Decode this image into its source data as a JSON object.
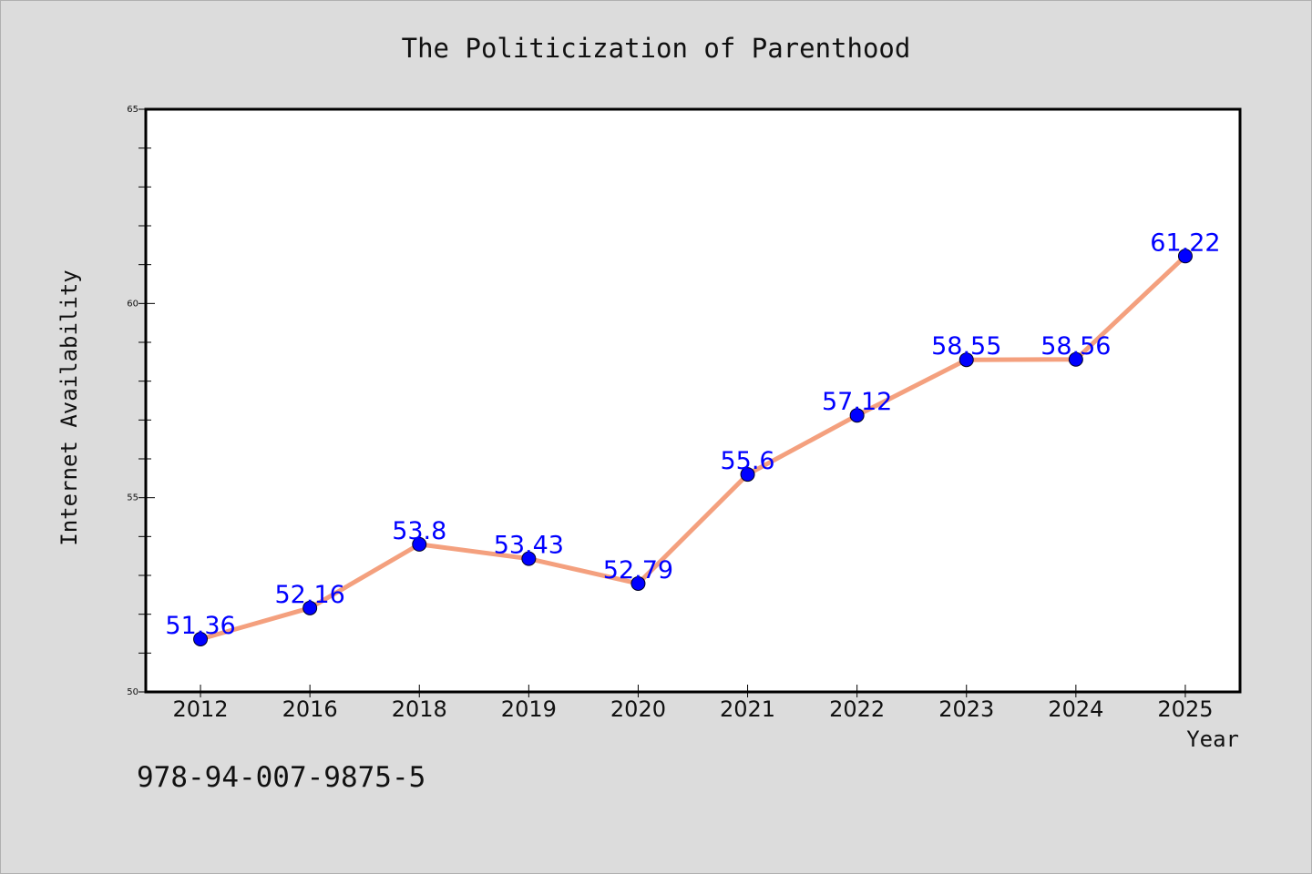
{
  "page": {
    "isbn": "978-94-007-9875-5"
  },
  "chart_data": {
    "type": "line",
    "title": "The Politicization of Parenthood",
    "xlabel": "Year",
    "ylabel": "Internet Availability",
    "categories": [
      "2012",
      "2016",
      "2018",
      "2019",
      "2020",
      "2021",
      "2022",
      "2023",
      "2024",
      "2025"
    ],
    "series": [
      {
        "values": [
          51.36,
          52.16,
          53.8,
          53.43,
          52.79,
          55.6,
          57.12,
          58.55,
          58.56,
          61.22
        ],
        "labels": [
          "51.36",
          "52.16",
          "53.8",
          "53.43",
          "52.79",
          "55.6",
          "57.12",
          "58.55",
          "58.56",
          "61.22"
        ]
      }
    ],
    "ylim": [
      50,
      65
    ],
    "yticks": [
      "50",
      "55",
      "60",
      "65"
    ],
    "grid": false,
    "line_color": "#f4a07e",
    "marker_color": "#0000ff",
    "label_color": "#0000ff",
    "background": "#dcdcdc",
    "plot_background": "#ffffff"
  }
}
